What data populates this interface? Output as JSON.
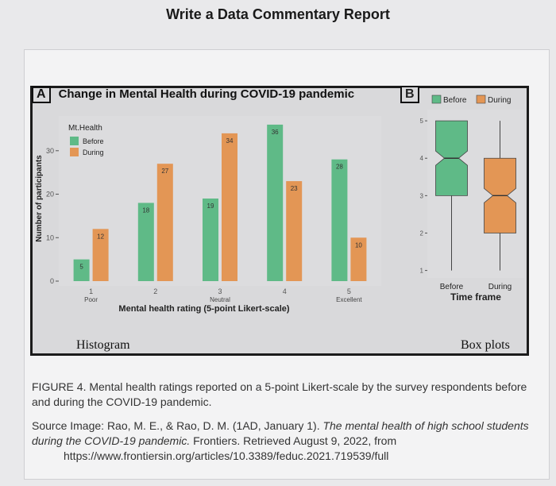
{
  "page_title": "Write a Data Commentary Report",
  "panel_a": {
    "letter": "A",
    "title": "Change in Mental Health during COVID-19 pandemic",
    "label": "Histogram"
  },
  "panel_b": {
    "letter": "B",
    "label": "Box plots"
  },
  "caption": {
    "figure_label": "FIGURE 4.",
    "text": "Mental health ratings reported on a 5-point Likert-scale by the survey respondents before and during the COVID-19 pandemic."
  },
  "source": {
    "prefix": "Source Image: Rao, M. E., & Rao, D. M. (1AD, January 1). ",
    "title_italic": "The mental health of high school students during the COVID-19 pandemic.",
    "suffix": " Frontiers. Retrieved August 9, 2022, from",
    "url": "https://www.frontiersin.org/articles/10.3389/feduc.2021.719539/full"
  },
  "colors": {
    "before": "#5fba87",
    "during": "#e39655",
    "panel_bg": "#dcdcde"
  },
  "chart_data": [
    {
      "type": "bar",
      "title": "Change in Mental Health during COVID-19 pandemic",
      "xlabel": "Mental health rating (5-point Likert-scale)",
      "ylabel": "Number of participants",
      "categories": [
        "1",
        "2",
        "3",
        "4",
        "5"
      ],
      "category_sublabels": [
        "Poor",
        "",
        "Neutral",
        "",
        "Excellent"
      ],
      "yticks": [
        0,
        10,
        20,
        30
      ],
      "ylim": [
        0,
        38
      ],
      "legend_title": "Mt.Health",
      "legend_position": "top-left",
      "series": [
        {
          "name": "Before",
          "values": [
            5,
            18,
            19,
            36,
            28
          ]
        },
        {
          "name": "During",
          "values": [
            12,
            27,
            34,
            23,
            10
          ]
        }
      ]
    },
    {
      "type": "box",
      "xlabel": "Time frame",
      "categories": [
        "Before",
        "During"
      ],
      "yticks": [
        1,
        2,
        3,
        4,
        5
      ],
      "ylim": [
        0.8,
        5.3
      ],
      "legend_position": "top",
      "series": [
        {
          "name": "Before",
          "min": 1,
          "q1": 3,
          "median": 4,
          "q3": 5,
          "max": 5
        },
        {
          "name": "During",
          "min": 1,
          "q1": 2,
          "median": 3,
          "q3": 4,
          "max": 5
        }
      ]
    }
  ]
}
